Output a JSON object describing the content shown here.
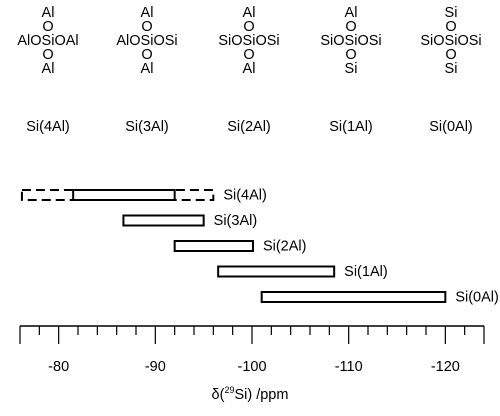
{
  "structures": [
    {
      "lines": [
        "Al",
        "O",
        "AlOSiOAl",
        "O",
        "Al"
      ],
      "label": "Si(4Al)"
    },
    {
      "lines": [
        "Al",
        "O",
        "AlOSiOSi",
        "O",
        "Al"
      ],
      "label": "Si(3Al)"
    },
    {
      "lines": [
        "Al",
        "O",
        "SiOSiOSi",
        "O",
        "Al"
      ],
      "label": "Si(2Al)"
    },
    {
      "lines": [
        "Al",
        "O",
        "SiOSiOSi",
        "O",
        "Si"
      ],
      "label": "Si(1Al)"
    },
    {
      "lines": [
        "Si",
        "O",
        "SiOSiOSi",
        "O",
        "Si"
      ],
      "label": "Si(0Al)"
    }
  ],
  "chart_data": {
    "type": "bar",
    "orientation": "horizontal-range",
    "xlabel_prefix": "δ(",
    "xlabel_sup": "29",
    "xlabel_suffix": "Si)  /ppm",
    "xlim": [
      -76,
      -124
    ],
    "x_reversed": true,
    "xticks": [
      -80,
      -90,
      -100,
      -110,
      -120
    ],
    "xtick_labels": [
      "-80",
      "-90",
      "-100",
      "-110",
      "-120"
    ],
    "ranges": [
      {
        "label": "Si(4Al)",
        "start": -81.5,
        "end": -92.0,
        "extended_start": -76.2,
        "extended_end": -96.0
      },
      {
        "label": "Si(3Al)",
        "start": -86.7,
        "end": -95.0
      },
      {
        "label": "Si(2Al)",
        "start": -92.0,
        "end": -100.1
      },
      {
        "label": "Si(1Al)",
        "start": -96.5,
        "end": -108.5
      },
      {
        "label": "Si(0Al)",
        "start": -101.0,
        "end": -120.0
      }
    ],
    "grid": false,
    "legend": "none"
  }
}
